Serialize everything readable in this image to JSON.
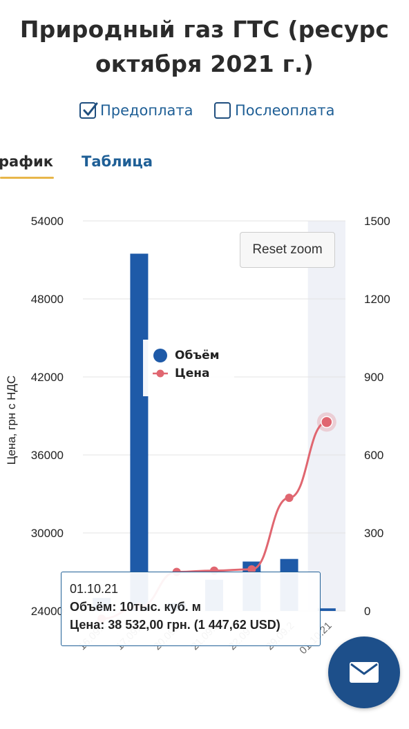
{
  "page": {
    "title_line1": "Природный газ ГТС (ресурс",
    "title_line2": "октября 2021 г.)"
  },
  "filters": {
    "prepay": {
      "label": "Предоплата",
      "checked": true
    },
    "postpay": {
      "label": "Послеоплата",
      "checked": false
    }
  },
  "tabs": [
    {
      "label": "рафик",
      "active": true
    },
    {
      "label": "Таблица",
      "active": false
    }
  ],
  "chart_data": {
    "type": "bar",
    "categories": [
      "16.09.2",
      "17.09.2",
      "20.09.2",
      "21.09.2",
      "22.09.2",
      "29.09.2",
      "01.10.21"
    ],
    "series": [
      {
        "name": "Объём",
        "type": "bar",
        "axis": "right",
        "color": "#1e5aa8",
        "values": [
          50,
          1374,
          30,
          120,
          190,
          200,
          10
        ]
      },
      {
        "name": "Цена",
        "type": "line",
        "axis": "left",
        "color": "#e06670",
        "values": [
          23400,
          24300,
          27000,
          27100,
          27200,
          32700,
          38532
        ]
      }
    ],
    "y_left": {
      "label": "Цена, грн с НДС",
      "ticks": [
        24000,
        30000,
        36000,
        42000,
        48000,
        54000
      ],
      "range": [
        24000,
        54000
      ]
    },
    "y_right": {
      "label": "",
      "ticks": [
        0,
        300,
        600,
        900,
        1200,
        1500
      ],
      "range": [
        0,
        1500
      ]
    },
    "highlighted_category": "01.10.21",
    "grid": true,
    "legend_position": "top-center"
  },
  "chart_ui": {
    "reset_zoom_label": "Reset zoom",
    "tooltip": {
      "date": "01.10.21",
      "volume_line": "Объём: 10тыс. куб. м",
      "price_line": "Цена: 38 532,00 грн. (1 447,62 USD)"
    }
  },
  "fab": {
    "icon": "envelope-icon",
    "color": "#1d4f8a"
  }
}
